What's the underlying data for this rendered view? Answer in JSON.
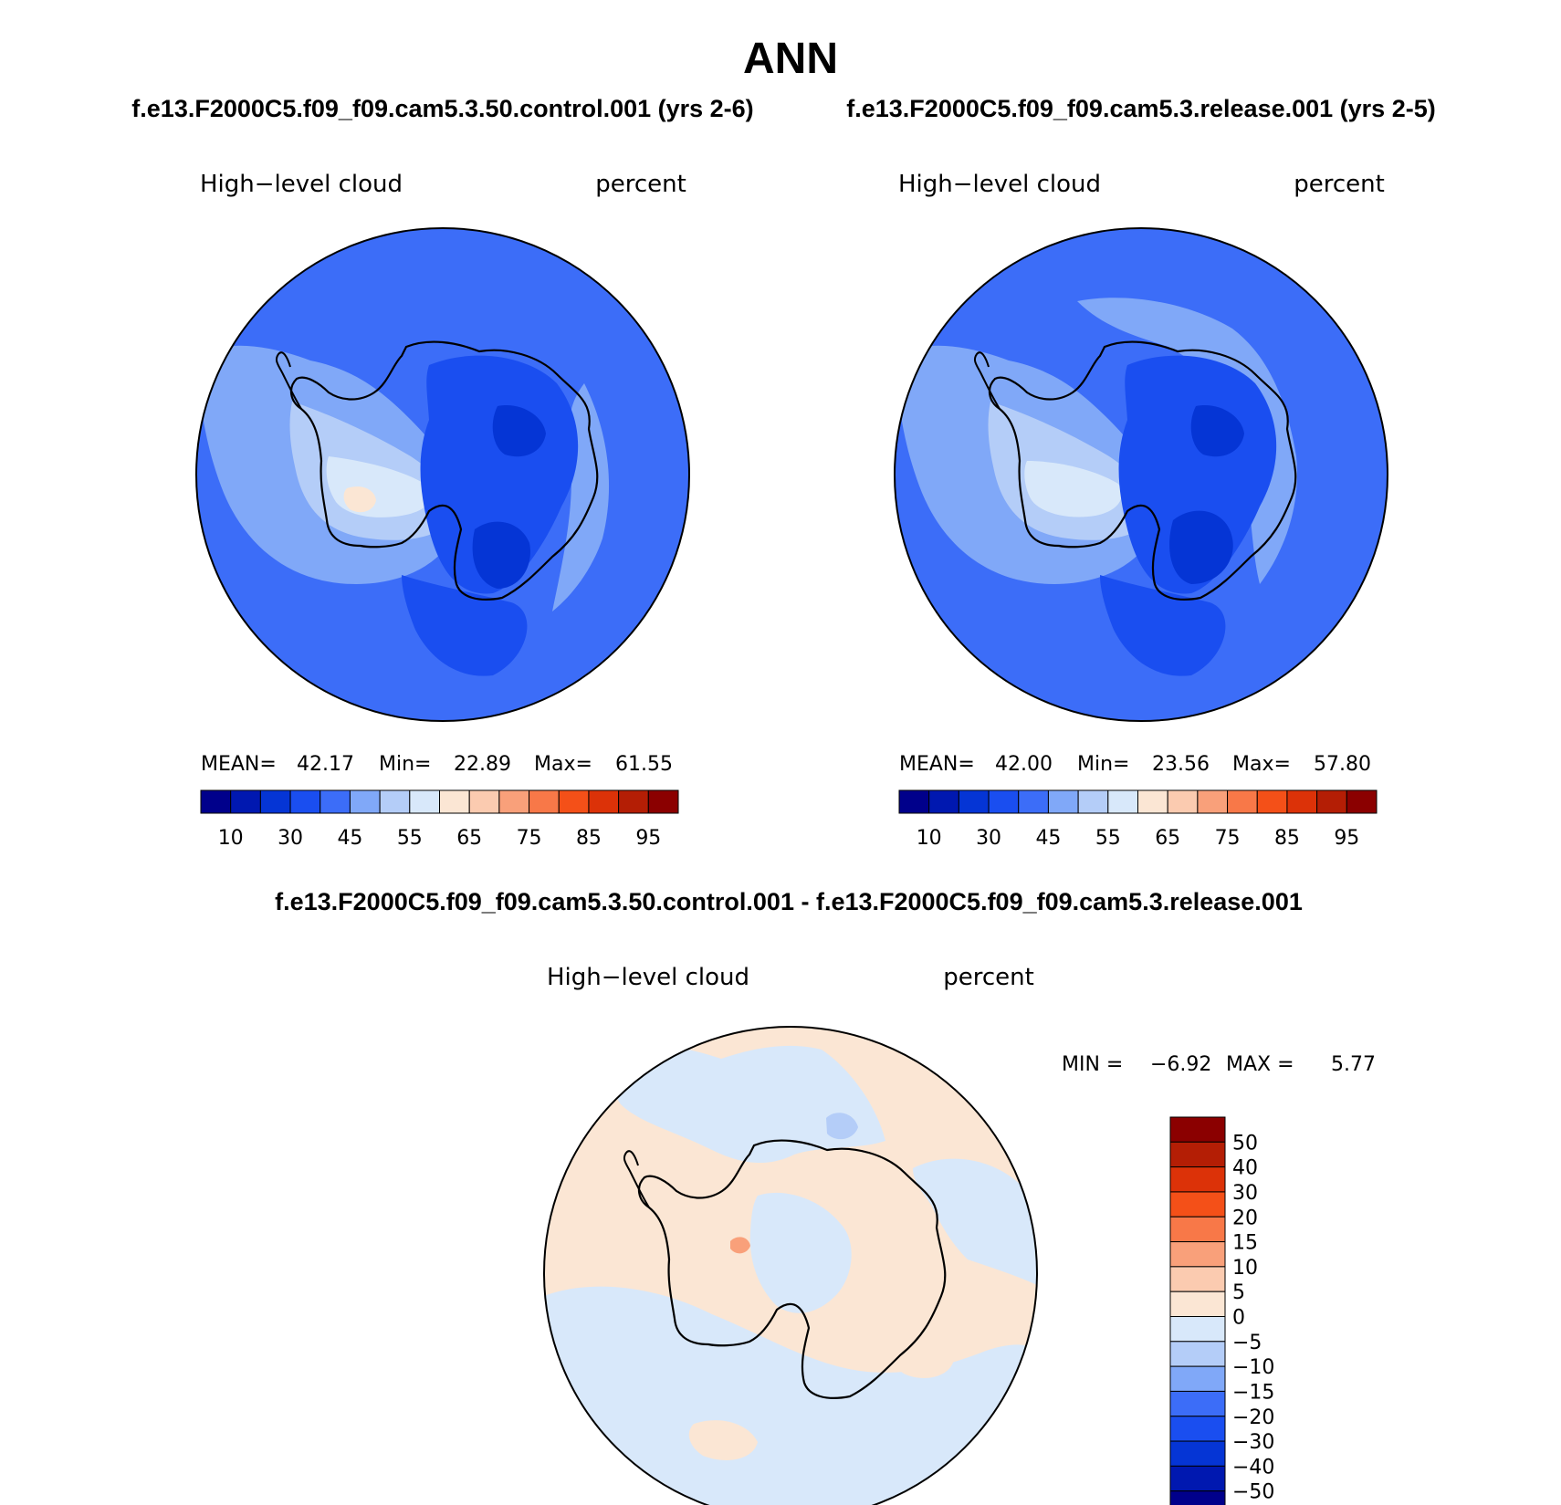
{
  "page_title": "ANN",
  "panels": [
    {
      "id": "control",
      "case_title": "f.e13.F2000C5.f09_f09.cam5.3.50.control.001 (yrs 2-6)",
      "variable": "High−level cloud",
      "units": "percent",
      "stats": {
        "mean_label": "MEAN=",
        "mean": "42.17",
        "min_label": "Min=",
        "min": "22.89",
        "max_label": "Max=",
        "max": "61.55"
      }
    },
    {
      "id": "release",
      "case_title": "f.e13.F2000C5.f09_f09.cam5.3.release.001 (yrs 2-5)",
      "variable": "High−level cloud",
      "units": "percent",
      "stats": {
        "mean_label": "MEAN=",
        "mean": "42.00",
        "min_label": "Min=",
        "min": "23.56",
        "max_label": "Max=",
        "max": "57.80"
      }
    }
  ],
  "abs_colorbar": {
    "colors": [
      "#00008b",
      "#0018b0",
      "#0535d5",
      "#1a4ef0",
      "#3c6df8",
      "#80a8f8",
      "#b4cdf8",
      "#d8e8fa",
      "#fbe6d4",
      "#fbcbb0",
      "#f9a07a",
      "#f87848",
      "#f45018",
      "#dc3208",
      "#b41e05",
      "#8b0000"
    ],
    "tick_labels": [
      "10",
      "30",
      "45",
      "55",
      "65",
      "75",
      "85",
      "95"
    ]
  },
  "diff_panel": {
    "title": "f.e13.F2000C5.f09_f09.cam5.3.50.control.001 - f.e13.F2000C5.f09_f09.cam5.3.release.001",
    "variable": "High−level cloud",
    "units": "percent",
    "min_label": "MIN =",
    "min": "−6.92",
    "max_label": "MAX =",
    "max": "5.77"
  },
  "diff_colorbar": {
    "colors": [
      "#8b0000",
      "#b41e05",
      "#dc3208",
      "#f45018",
      "#f87848",
      "#f9a07a",
      "#fbcbb0",
      "#fbe6d4",
      "#d8e8fa",
      "#b4cdf8",
      "#80a8f8",
      "#3c6df8",
      "#1a4ef0",
      "#0535d5",
      "#0018b0",
      "#00008b"
    ],
    "tick_labels": [
      "50",
      "40",
      "30",
      "20",
      "15",
      "10",
      "5",
      "0",
      "−5",
      "−10",
      "−15",
      "−20",
      "−30",
      "−40",
      "−50"
    ]
  },
  "colors": {
    "ocean_mid": "#3c6df8",
    "ocean_light": "#80a8f8",
    "ocean_lighter": "#b4cdf8",
    "pale_blue": "#d8e8fa",
    "pale_orange": "#fbe6d4",
    "dark_blue": "#1a4ef0",
    "darker_blue": "#0535d5",
    "outline": "#000000"
  }
}
